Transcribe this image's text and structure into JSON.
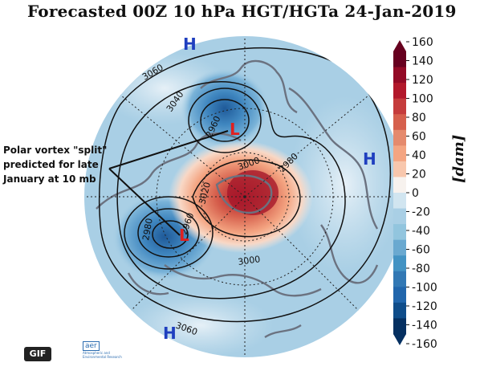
{
  "title": "Forecasted 00Z 10 hPa HGT/HGTa 24-Jan-2019",
  "annotation": {
    "lines": [
      "Polar vortex \"split\"",
      "predicted for late",
      "January at 10 mb"
    ]
  },
  "highs": [
    {
      "label": "H"
    },
    {
      "label": "H"
    },
    {
      "label": "H"
    }
  ],
  "lows": [
    {
      "label": "L"
    },
    {
      "label": "L"
    }
  ],
  "contour_labels": [
    "3060",
    "3040",
    "2960",
    "3000",
    "2980",
    "3020",
    "2980",
    "2960",
    "3000",
    "3060"
  ],
  "colorbar": {
    "unit": "[dam]",
    "ticks": [
      "160",
      "140",
      "120",
      "100",
      "80",
      "60",
      "40",
      "20",
      "0",
      "-20",
      "-40",
      "-60",
      "-80",
      "-100",
      "-120",
      "-140",
      "-160"
    ],
    "colors": [
      "#67001f",
      "#930a26",
      "#b2182b",
      "#c53c3c",
      "#d6604d",
      "#e58a6d",
      "#f4a582",
      "#f8c7ad",
      "#f7f2ee",
      "#d1e5f0",
      "#a9cfe5",
      "#92c5de",
      "#6aa9d0",
      "#4393c3",
      "#3278b4",
      "#2166ac",
      "#0f4d8a",
      "#053061"
    ]
  },
  "badge": "GIF",
  "logo": {
    "mark": "aer",
    "sub": "Atmospheric and Environmental Research"
  }
}
